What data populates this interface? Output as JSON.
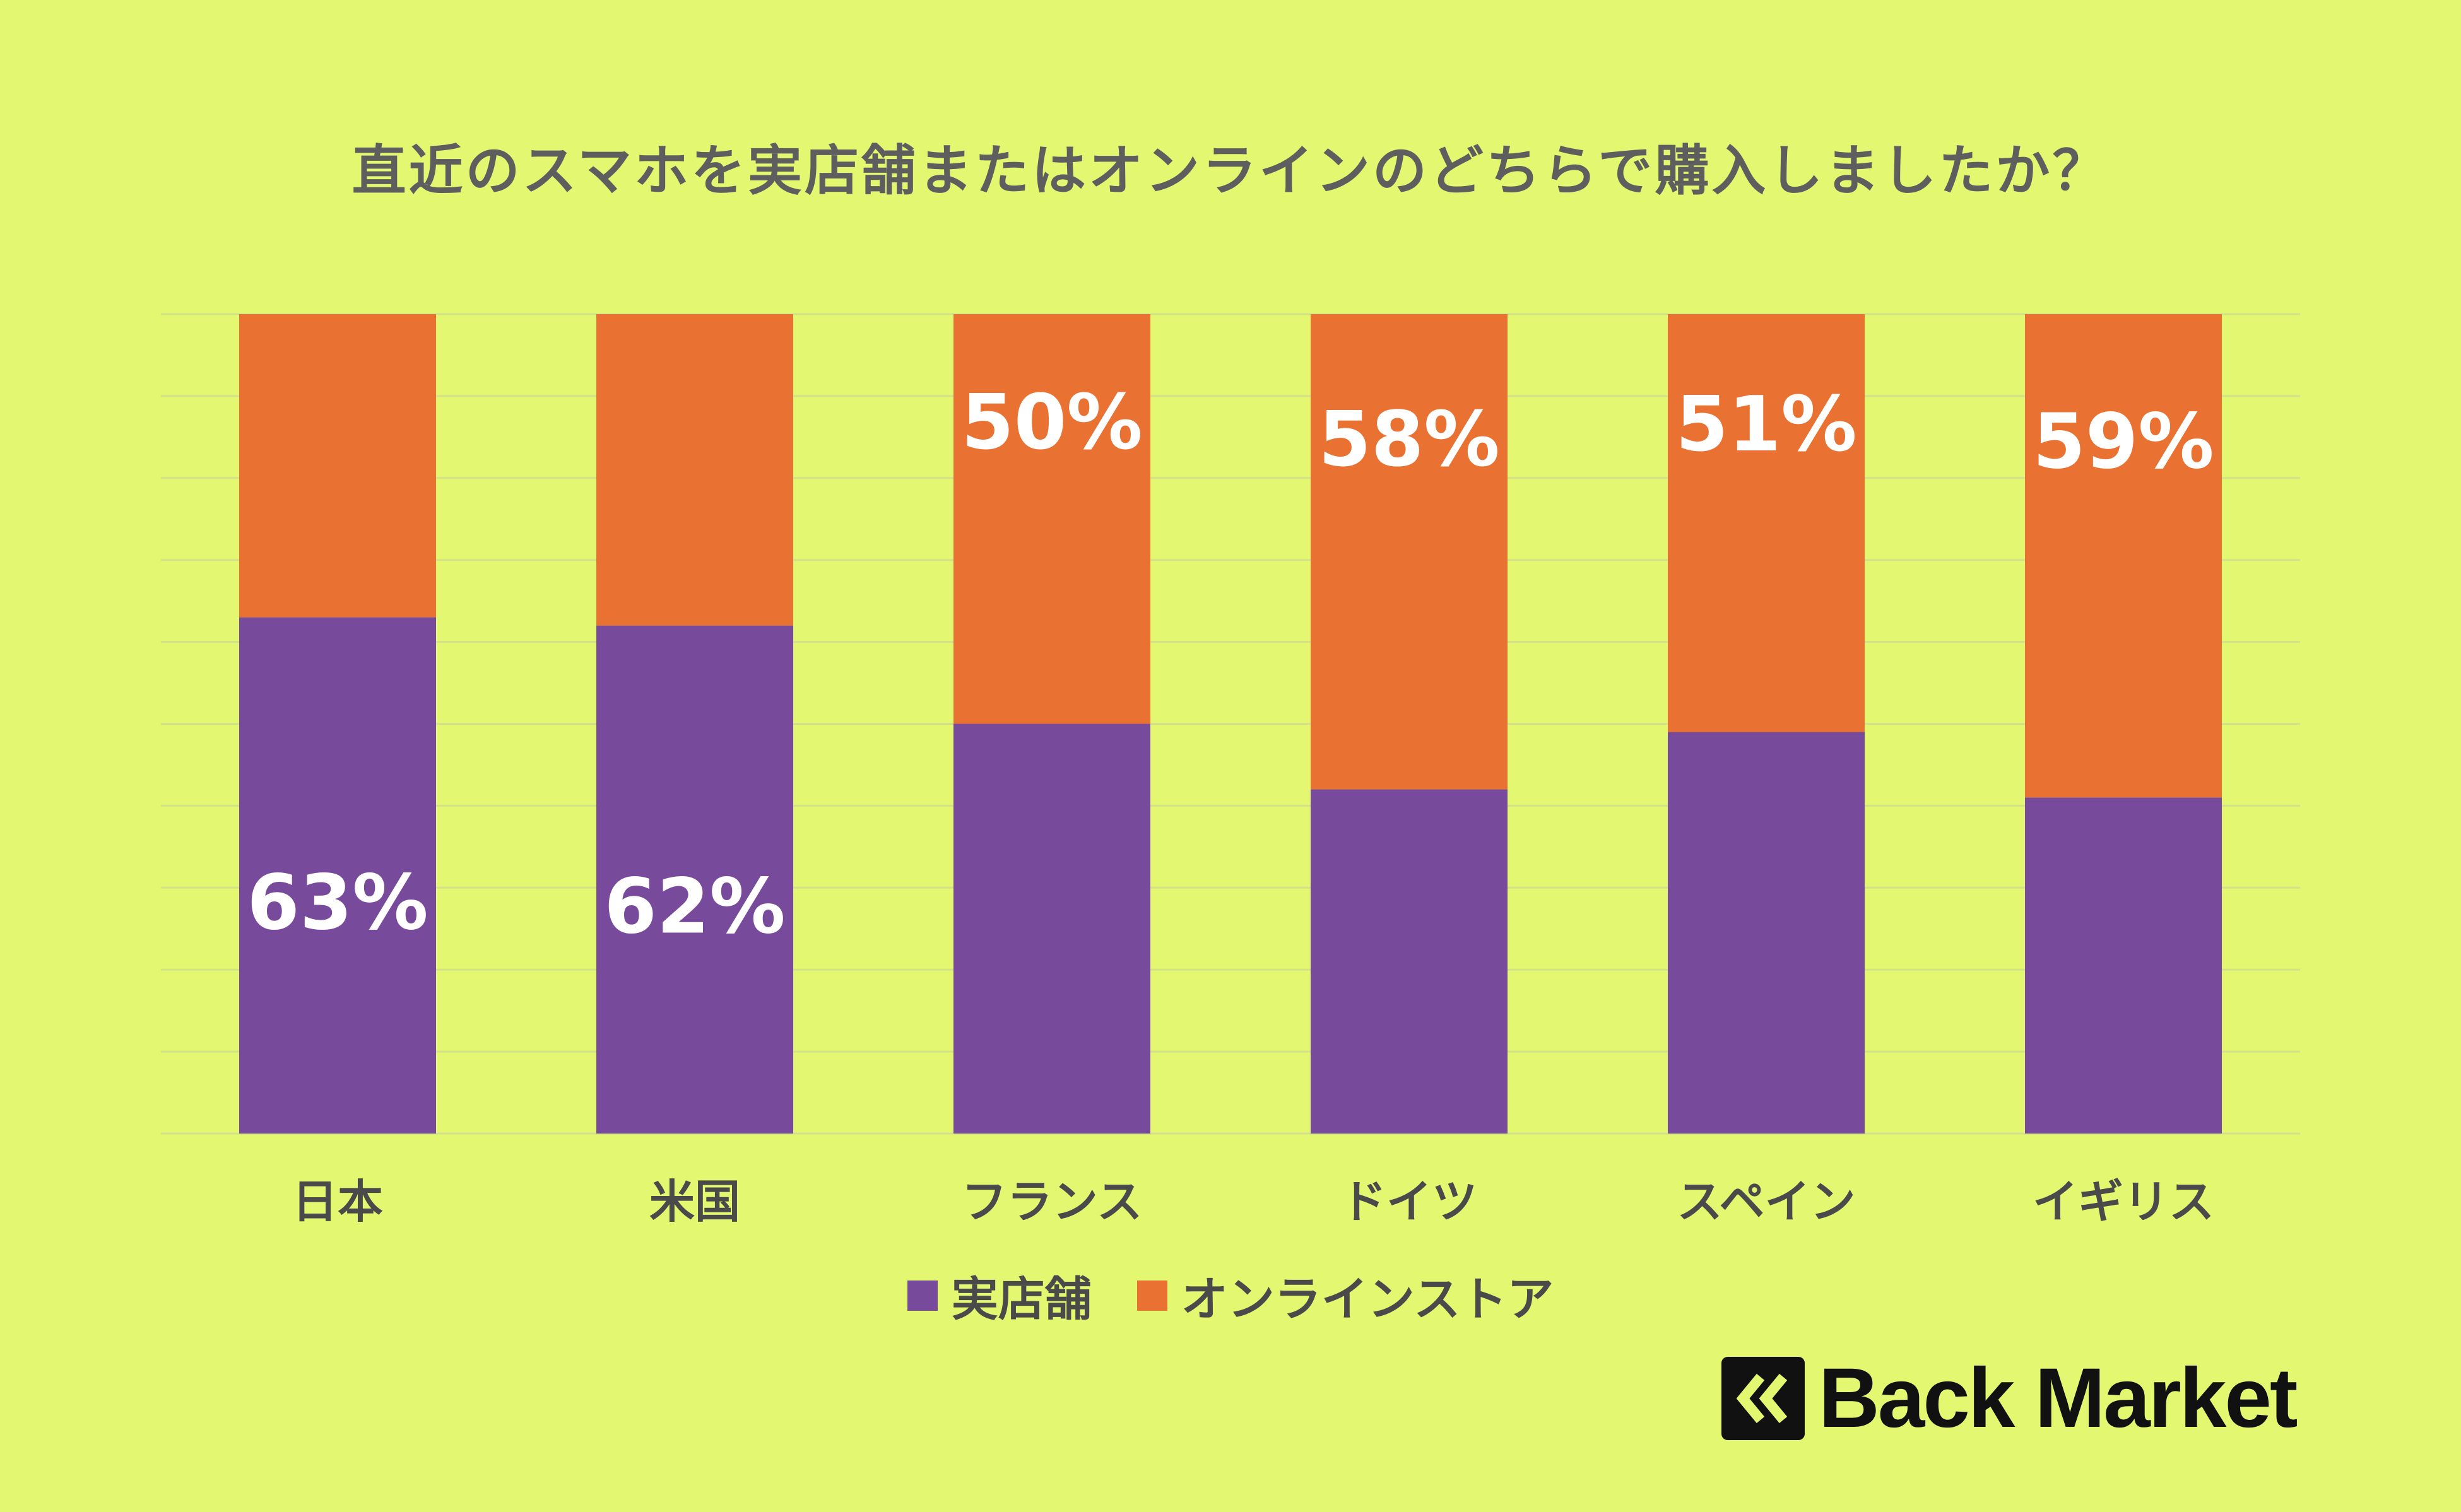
{
  "chart_data": {
    "type": "bar",
    "stacked": true,
    "title": "直近のスマホを実店舗またはオンラインのどちらで購入しましたか？",
    "categories": [
      "日本",
      "米国",
      "フランス",
      "ドイツ",
      "スペイン",
      "イギリス"
    ],
    "series": [
      {
        "name": "実店舗",
        "color": "#774a9c",
        "values": [
          63,
          62,
          50,
          42,
          49,
          41
        ]
      },
      {
        "name": "オンラインストア",
        "color": "#e97233",
        "values": [
          37,
          38,
          50,
          58,
          51,
          59
        ]
      }
    ],
    "data_labels": [
      {
        "category": "日本",
        "series": "実店舗",
        "text": "63%"
      },
      {
        "category": "米国",
        "series": "実店舗",
        "text": "62%"
      },
      {
        "category": "フランス",
        "series": "オンラインストア",
        "text": "50%"
      },
      {
        "category": "ドイツ",
        "series": "オンラインストア",
        "text": "58%"
      },
      {
        "category": "スペイン",
        "series": "オンラインストア",
        "text": "51%"
      },
      {
        "category": "イギリス",
        "series": "オンラインストア",
        "text": "59%"
      }
    ],
    "ylim": [
      0,
      100
    ],
    "grid": true,
    "legend": "bottom"
  },
  "brand": {
    "name": "Back Market",
    "logo_icon": "back-market-chevron-icon"
  },
  "colors": {
    "background": "#e3f870",
    "gridline": "#d2e28a"
  }
}
